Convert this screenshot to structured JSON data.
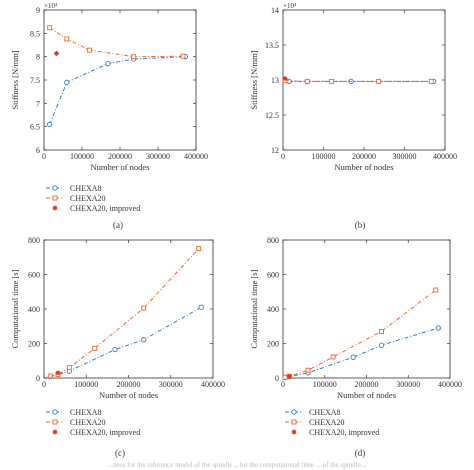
{
  "figure": {
    "legend": {
      "entries": [
        "CHEXA8",
        "CHEXA20",
        "CHEXA20, improved"
      ],
      "placement": "below-plot"
    },
    "footer_fragment": "...ness for the reference model of the spindle ...for the computational time ... of the spindle..."
  },
  "colors": {
    "chexa8": "#2e7fcf",
    "chexa20": "#ee6633",
    "improved": "#dd3311",
    "axis": "#333333"
  },
  "chart_data": [
    {
      "type": "line",
      "panel_label": "(a)",
      "xlabel": "Number of nodes",
      "ylabel": "Stiffness [N/mm]",
      "y_multiplier": "×10⁴",
      "xlim": [
        0,
        400000
      ],
      "ylim": [
        6,
        9
      ],
      "x_ticks": [
        0,
        100000,
        200000,
        300000,
        400000
      ],
      "x_tick_labels": [
        "0",
        "100000",
        "200000",
        "300000",
        "400000"
      ],
      "y_ticks": [
        6,
        6.5,
        7,
        7.5,
        8,
        8.5,
        9
      ],
      "y_tick_labels": [
        "6",
        "6.5",
        "7",
        "7.5",
        "8",
        "8.5",
        "9"
      ],
      "grid": false,
      "series": [
        {
          "name": "CHEXA8",
          "style": "dash-dot, circle markers",
          "x": [
            15000,
            60000,
            168000,
            236000,
            372000
          ],
          "y": [
            6.55,
            7.45,
            7.85,
            7.95,
            8.0
          ]
        },
        {
          "name": "CHEXA20",
          "style": "dash-dot, square markers",
          "x": [
            15000,
            60000,
            120000,
            236000,
            366000
          ],
          "y": [
            8.62,
            8.38,
            8.14,
            8.0,
            8.01
          ]
        },
        {
          "name": "CHEXA20, improved",
          "style": "asterisk marker",
          "x": [
            33000
          ],
          "y": [
            8.07
          ]
        }
      ]
    },
    {
      "type": "line",
      "panel_label": "(b)",
      "xlabel": "Number of nodes",
      "ylabel": "Stiffness [N/mm]",
      "y_multiplier": "×10⁴",
      "xlim": [
        0,
        400000
      ],
      "ylim": [
        12,
        14
      ],
      "x_ticks": [
        0,
        100000,
        200000,
        300000,
        400000
      ],
      "x_tick_labels": [
        "0",
        "100000",
        "200000",
        "300000",
        "400000"
      ],
      "y_ticks": [
        12,
        12.5,
        13,
        13.5,
        14
      ],
      "y_tick_labels": [
        "12",
        "12.5",
        "13",
        "13.5",
        "14"
      ],
      "grid": false,
      "series": [
        {
          "name": "CHEXA8",
          "style": "dash-dot, circle markers",
          "x": [
            15000,
            60000,
            168000,
            236000,
            372000
          ],
          "y": [
            12.98,
            12.98,
            12.98,
            12.98,
            12.98
          ]
        },
        {
          "name": "CHEXA20",
          "style": "dash-dot, square markers",
          "x": [
            5000,
            60000,
            120000,
            236000,
            366000
          ],
          "y": [
            12.99,
            12.98,
            12.98,
            12.98,
            12.98
          ]
        },
        {
          "name": "CHEXA20, improved",
          "style": "asterisk marker",
          "x": [
            5000
          ],
          "y": [
            13.02
          ]
        }
      ]
    },
    {
      "type": "line",
      "panel_label": "(c)",
      "xlabel": "Number of nodes",
      "ylabel": "Computational time [s]",
      "xlim": [
        0,
        400000
      ],
      "ylim": [
        0,
        800
      ],
      "x_ticks": [
        0,
        100000,
        200000,
        300000,
        400000
      ],
      "x_tick_labels": [
        "0",
        "100000",
        "200000",
        "300000",
        "400000"
      ],
      "y_ticks": [
        0,
        200,
        400,
        600,
        800
      ],
      "y_tick_labels": [
        "0",
        "200",
        "400",
        "600",
        "800"
      ],
      "grid": false,
      "series": [
        {
          "name": "CHEXA8",
          "style": "dash-dot, circle markers",
          "x": [
            15000,
            60000,
            168000,
            236000,
            372000
          ],
          "y": [
            8,
            40,
            165,
            222,
            410
          ]
        },
        {
          "name": "CHEXA20",
          "style": "dash-dot, square markers",
          "x": [
            15000,
            33000,
            60000,
            120000,
            236000,
            366000
          ],
          "y": [
            12,
            20,
            60,
            172,
            405,
            750
          ]
        },
        {
          "name": "CHEXA20, improved",
          "style": "asterisk marker",
          "x": [
            33000
          ],
          "y": [
            30
          ]
        }
      ]
    },
    {
      "type": "line",
      "panel_label": "(d)",
      "xlabel": "Number of nodes",
      "ylabel": "Computational time [s]",
      "xlim": [
        0,
        400000
      ],
      "ylim": [
        0,
        800
      ],
      "x_ticks": [
        0,
        100000,
        200000,
        300000,
        400000
      ],
      "x_tick_labels": [
        "0",
        "100000",
        "200000",
        "300000",
        "400000"
      ],
      "y_ticks": [
        0,
        200,
        400,
        600,
        800
      ],
      "y_tick_labels": [
        "0",
        "200",
        "400",
        "600",
        "800"
      ],
      "grid": false,
      "series": [
        {
          "name": "CHEXA8",
          "style": "dash-dot, circle markers",
          "x": [
            5000,
            15000,
            60000,
            168000,
            236000,
            372000
          ],
          "y": [
            3,
            8,
            30,
            120,
            190,
            290
          ]
        },
        {
          "name": "CHEXA20",
          "style": "dash-dot, square markers",
          "x": [
            5000,
            15000,
            60000,
            120000,
            236000,
            366000
          ],
          "y": [
            4,
            10,
            45,
            122,
            270,
            510
          ]
        },
        {
          "name": "CHEXA20, improved",
          "style": "asterisk marker",
          "x": [
            15000
          ],
          "y": [
            10
          ]
        }
      ]
    }
  ]
}
